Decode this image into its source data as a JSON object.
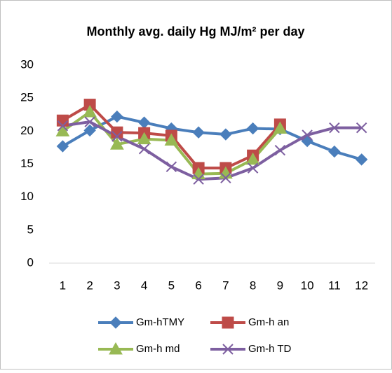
{
  "chart_data": {
    "type": "line",
    "title": "Monthly avg. daily Hg MJ/m² per day",
    "categories": [
      "1",
      "2",
      "3",
      "4",
      "5",
      "6",
      "7",
      "8",
      "9",
      "10",
      "11",
      "12"
    ],
    "series": [
      {
        "name": "Gm-hTMY",
        "color": "#4a7ebb",
        "marker": "diamond",
        "values": [
          17.7,
          20.1,
          22.2,
          21.3,
          20.4,
          19.8,
          19.5,
          20.4,
          20.3,
          18.5,
          16.9,
          15.7
        ]
      },
      {
        "name": "Gm-h an",
        "color": "#be4b48",
        "marker": "square",
        "values": [
          21.6,
          24.0,
          19.8,
          19.7,
          19.3,
          14.4,
          14.4,
          16.3,
          21.0,
          null,
          null,
          null
        ]
      },
      {
        "name": "Gm-h md",
        "color": "#98b954",
        "marker": "triangle",
        "values": [
          20.0,
          22.9,
          18.0,
          18.8,
          18.6,
          13.5,
          13.6,
          15.7,
          20.4,
          null,
          null,
          null
        ]
      },
      {
        "name": "Gm-h TD",
        "color": "#7d5fa0",
        "marker": "x",
        "values": [
          20.8,
          21.4,
          19.2,
          17.3,
          14.6,
          12.7,
          12.9,
          14.4,
          17.1,
          19.4,
          20.5,
          20.5
        ]
      }
    ],
    "ylim": [
      0,
      30
    ],
    "yticks": [
      0,
      5,
      10,
      15,
      20,
      25,
      30
    ],
    "grid": false,
    "legend": "bottom"
  }
}
